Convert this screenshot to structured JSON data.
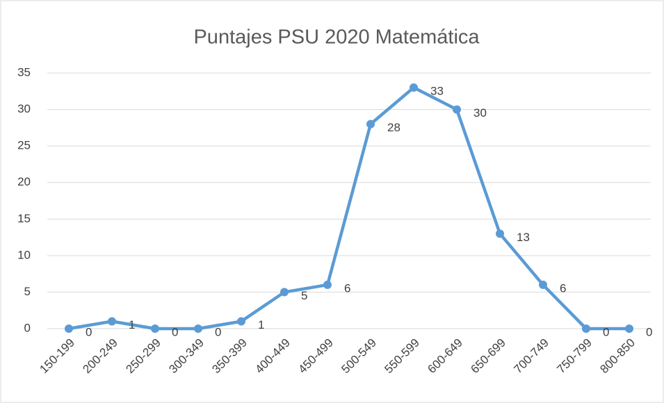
{
  "chart_data": {
    "type": "line",
    "title": "Puntajes PSU 2020 Matemática",
    "categories": [
      "150-199",
      "200-249",
      "250-299",
      "300-349",
      "350-399",
      "400-449",
      "450-499",
      "500-549",
      "550-599",
      "600-649",
      "650-699",
      "700-749",
      "750-799",
      "800-850"
    ],
    "values": [
      0,
      1,
      0,
      0,
      1,
      5,
      6,
      28,
      33,
      30,
      13,
      6,
      0,
      0
    ],
    "color": "#5b9bd5",
    "ylim": [
      0,
      35
    ],
    "yticks": [
      0,
      5,
      10,
      15,
      20,
      25,
      30,
      35
    ],
    "grid": true
  }
}
